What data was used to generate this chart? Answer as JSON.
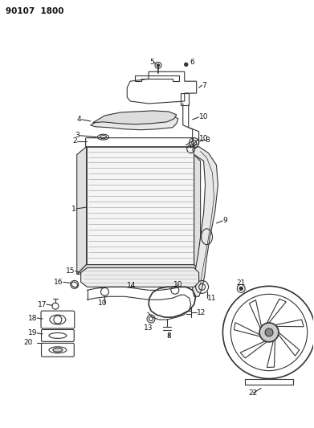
{
  "title": "90107  1800",
  "bg_color": "#ffffff",
  "fig_width": 3.91,
  "fig_height": 5.33,
  "dpi": 100,
  "line_color": "#333333",
  "label_color": "#111111"
}
